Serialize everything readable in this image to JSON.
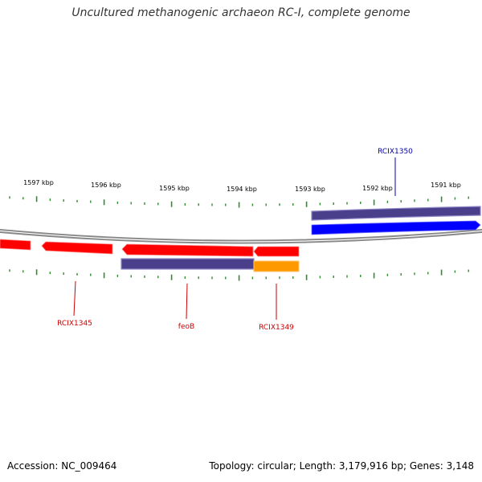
{
  "title": "Uncultured methanogenic archaeon RC-I, complete genome",
  "footer": {
    "accession": "Accession: NC_009464",
    "summary": "Topology: circular; Length: 3,179,916 bp; Genes: 3,148"
  },
  "scale_labels": [
    "1597 kbp",
    "1596 kbp",
    "1595 kbp",
    "1594 kbp",
    "1593 kbp",
    "1592 kbp",
    "1591 kbp"
  ],
  "genes": [
    {
      "label": "RCIX1345",
      "color": "#cc0000"
    },
    {
      "label": "feoB",
      "color": "#cc0000"
    },
    {
      "label": "RCIX1349",
      "color": "#cc0000"
    },
    {
      "label": "RCIX1350",
      "color": "#0000aa"
    }
  ],
  "colors": {
    "forward_gene": "#0000ff",
    "reverse_gene": "#ff0000",
    "cds": "#4a3f8a",
    "orange_feature": "#ff9900",
    "backbone": "#888888",
    "ticks": "#2e8b2e"
  }
}
